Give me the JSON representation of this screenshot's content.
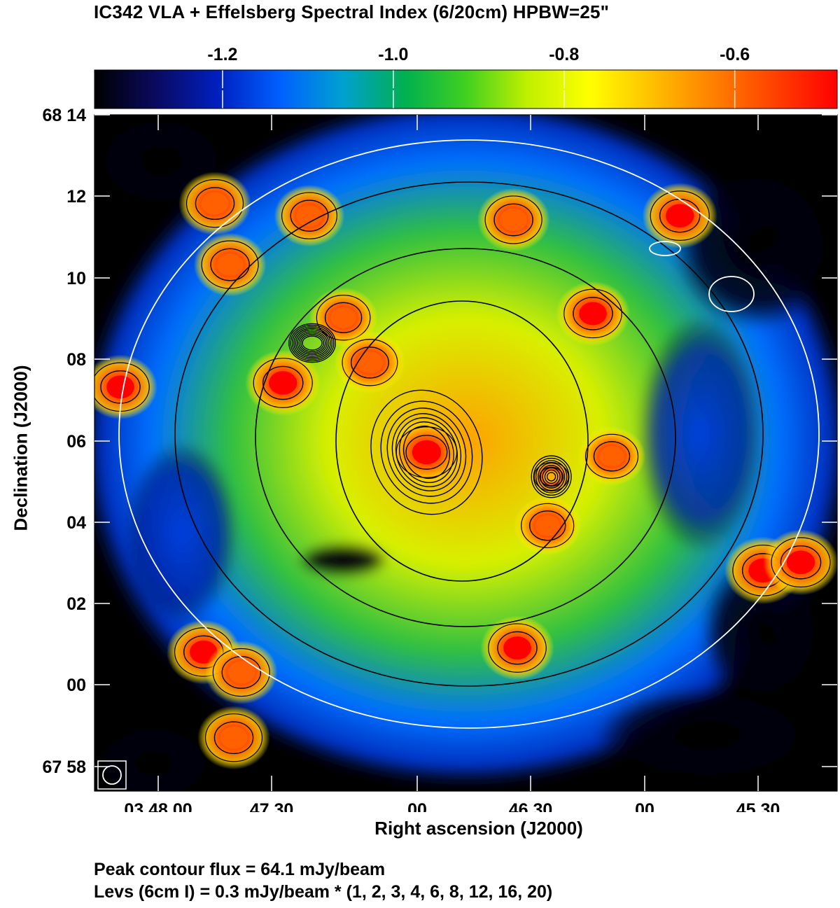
{
  "chart_data": {
    "type": "heatmap",
    "title": "IC342   VLA + Effelsberg   Spectral Index (6/20cm)   HPBW=25\"",
    "xlabel": "Right ascension (J2000)",
    "ylabel": "Declination (J2000)",
    "colorbar": {
      "ticks": [
        "-1.2",
        "-1.0",
        "-0.8",
        "-0.6"
      ],
      "tick_values": [
        -1.2,
        -1.0,
        -0.8,
        -0.6
      ],
      "range": [
        -1.35,
        -0.48
      ],
      "colors": [
        "#000000",
        "#0a0a60",
        "#0020c0",
        "#0060ff",
        "#00a0d0",
        "#00b050",
        "#40d020",
        "#c0f000",
        "#ffff00",
        "#ffc000",
        "#ff8000",
        "#ff4000",
        "#ff0000"
      ]
    },
    "x_ticks": [
      "03 48 00",
      "47 30",
      "00",
      "46 30",
      "00",
      "45 30"
    ],
    "y_ticks": [
      "68 14",
      "12",
      "10",
      "08",
      "06",
      "04",
      "02",
      "00",
      "67 58"
    ],
    "beam": "circle",
    "footer": {
      "peak": "Peak contour flux =  64.1 mJy/beam",
      "levels": "Levs (6cm I) = 0.3 mJy/beam * (1, 2, 3, 4, 6, 8, 12, 16, 20)"
    },
    "blobs": [
      {
        "ra": "03 46 49",
        "dec": "68 05.7",
        "alpha": -0.55
      },
      {
        "ra": "03 46 16",
        "dec": "68 05.1",
        "alpha": -1.05
      },
      {
        "ra": "03 47 41",
        "dec": "68 10.3",
        "alpha": -0.62
      },
      {
        "ra": "03 47 27",
        "dec": "68 07.4",
        "alpha": -0.58
      },
      {
        "ra": "03 46 05",
        "dec": "68 09.1",
        "alpha": -0.6
      },
      {
        "ra": "03 46 26",
        "dec": "68 11.4",
        "alpha": -0.62
      },
      {
        "ra": "03 46 25",
        "dec": "68 00.9",
        "alpha": -0.6
      },
      {
        "ra": "03 45 20",
        "dec": "68 02.8",
        "alpha": -0.55
      },
      {
        "ra": "03 45 10",
        "dec": "68 03.0",
        "alpha": -0.58
      },
      {
        "ra": "03 48 10",
        "dec": "68 07.3",
        "alpha": -0.6
      },
      {
        "ra": "03 47 45",
        "dec": "68 11.8",
        "alpha": -0.62
      },
      {
        "ra": "03 47 20",
        "dec": "68 11.5",
        "alpha": -0.65
      },
      {
        "ra": "03 47 11",
        "dec": "68 09.0",
        "alpha": -0.68
      },
      {
        "ra": "03 47 04",
        "dec": "68 07.9",
        "alpha": -0.65
      },
      {
        "ra": "03 47 48",
        "dec": "68 00.8",
        "alpha": -0.6
      },
      {
        "ra": "03 47 38",
        "dec": "68 00.3",
        "alpha": -0.62
      },
      {
        "ra": "03 47 40",
        "dec": "67 58.7",
        "alpha": -0.62
      },
      {
        "ra": "03 45 42",
        "dec": "68 11.5",
        "alpha": -0.58
      },
      {
        "ra": "03 46 00",
        "dec": "68 05.6",
        "alpha": -0.7
      },
      {
        "ra": "03 46 17",
        "dec": "68 03.9",
        "alpha": -0.7
      }
    ]
  }
}
